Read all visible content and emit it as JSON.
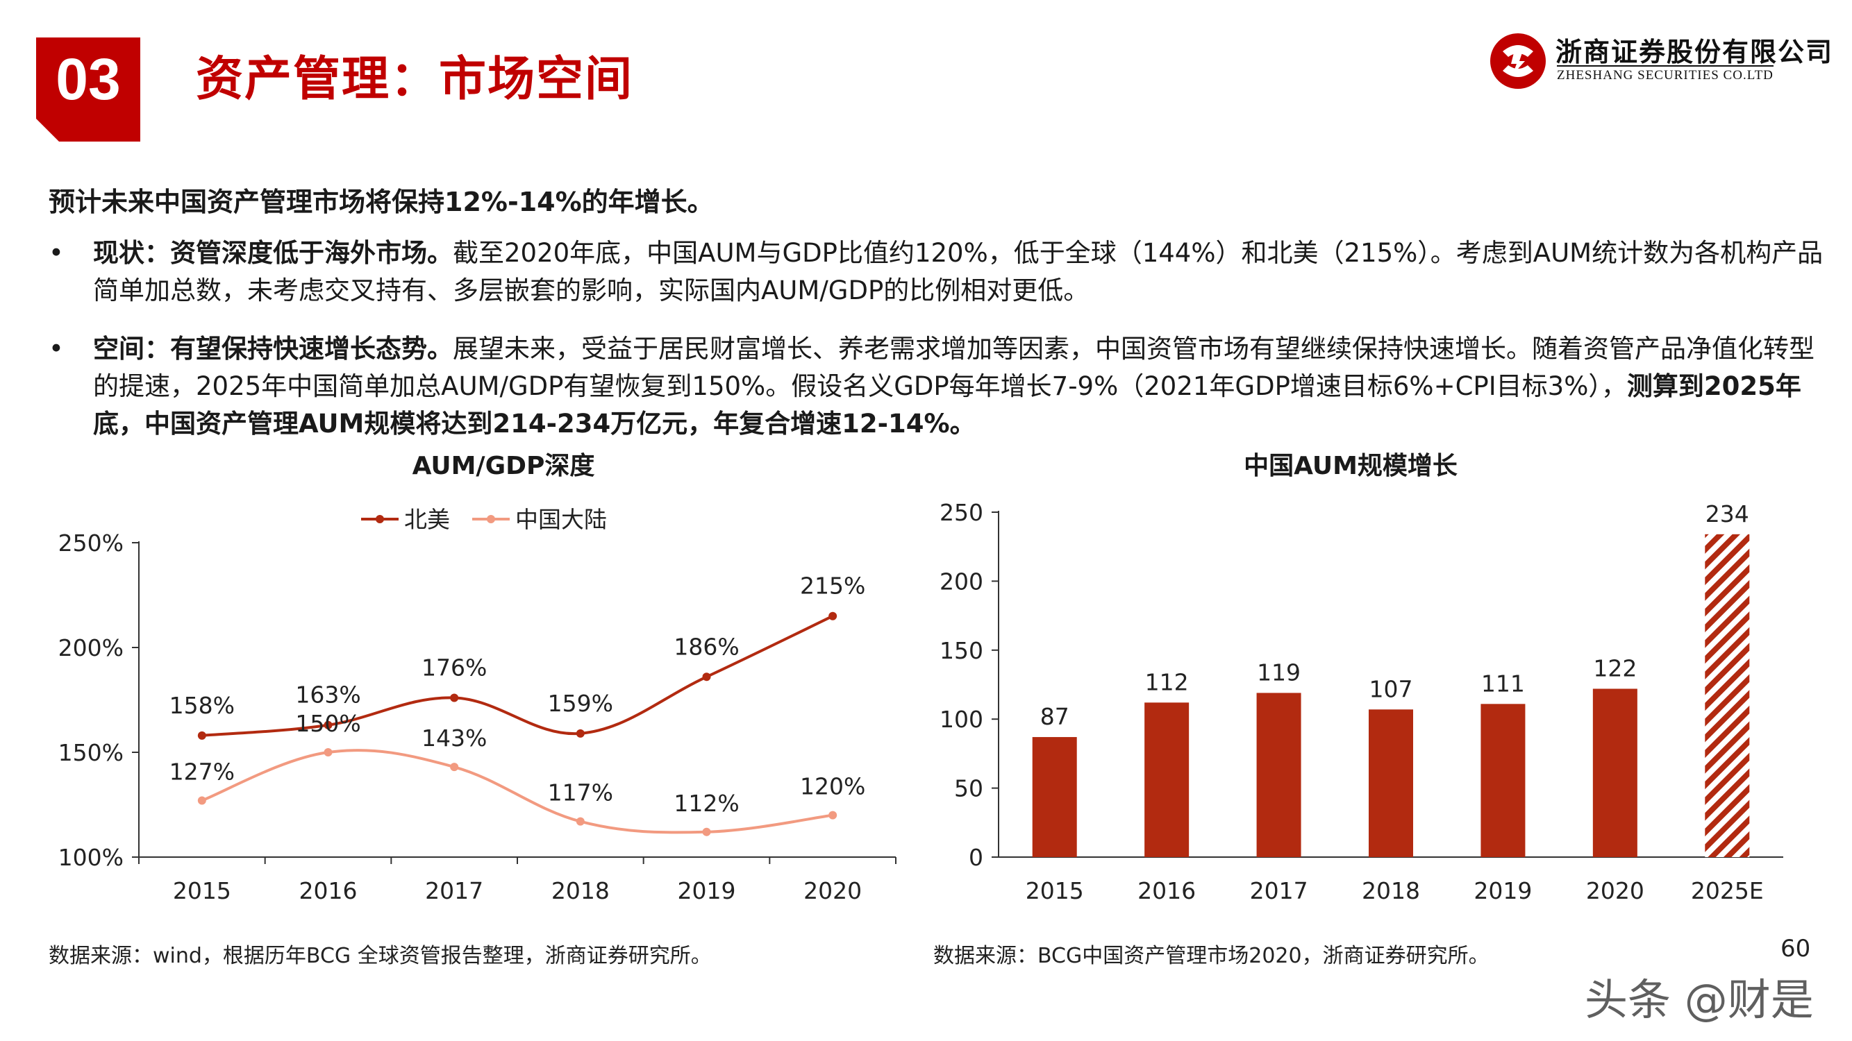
{
  "header": {
    "section_number": "03",
    "title": "资产管理：市场空间",
    "company_cn": "浙商证券股份有限公司",
    "company_en": "ZHESHANG SECURITIES CO.LTD",
    "brand_color": "#c00000"
  },
  "body": {
    "headline": "预计未来中国资产管理市场将保持12%-14%的年增长。",
    "bullets": [
      {
        "marker": "•",
        "bold_lead": "现状：资管深度低于海外市场。",
        "text": "截至2020年底，中国AUM与GDP比值约120%，低于全球（144%）和北美（215%）。考虑到AUM统计数为各机构产品简单加总数，未考虑交叉持有、多层嵌套的影响，实际国内AUM/GDP的比例相对更低。"
      },
      {
        "marker": "•",
        "bold_lead": "空间：有望保持快速增长态势。",
        "text": "展望未来，受益于居民财富增长、养老需求增加等因素，中国资管市场有望继续保持快速增长。随着资管产品净值化转型的提速，2025年中国简单加总AUM/GDP有望恢复到150%。假设名义GDP每年增长7-9%（2021年GDP增速目标6%+CPI目标3%），",
        "bold_tail": "测算到2025年底，中国资产管理AUM规模将达到214-234万亿元，年复合增速12-14%。"
      }
    ]
  },
  "chart_data": [
    {
      "type": "line",
      "title": "AUM/GDP深度",
      "categories": [
        "2015",
        "2016",
        "2017",
        "2018",
        "2019",
        "2020"
      ],
      "series": [
        {
          "name": "北美",
          "values": [
            158,
            163,
            176,
            159,
            186,
            215
          ],
          "labels": [
            "158%",
            "163%",
            "176%",
            "159%",
            "186%",
            "215%"
          ],
          "color": "#b22a10"
        },
        {
          "name": "中国大陆",
          "values": [
            127,
            150,
            143,
            117,
            112,
            120
          ],
          "labels": [
            "127%",
            "150%",
            "143%",
            "117%",
            "112%",
            "120%"
          ],
          "color": "#f29a80"
        }
      ],
      "ylim": [
        100,
        250
      ],
      "yticks": [
        100,
        150,
        200,
        250
      ],
      "ytick_labels": [
        "100%",
        "150%",
        "200%",
        "250%"
      ],
      "legend_position": "top",
      "grid": false,
      "smooth": true
    },
    {
      "type": "bar",
      "title": "中国AUM规模增长",
      "categories": [
        "2015",
        "2016",
        "2017",
        "2018",
        "2019",
        "2020",
        "2025E"
      ],
      "values": [
        87,
        112,
        119,
        107,
        111,
        122,
        234
      ],
      "estimated": [
        false,
        false,
        false,
        false,
        false,
        false,
        true
      ],
      "ylim": [
        0,
        250
      ],
      "yticks": [
        0,
        50,
        100,
        150,
        200,
        250
      ],
      "ytick_labels": [
        "0",
        "50",
        "100",
        "150",
        "200",
        "250"
      ],
      "bar_color": "#b22a10",
      "estimate_pattern": "diagonal-hatch",
      "grid": false
    }
  ],
  "footer": {
    "source_left": "数据来源：wind，根据历年BCG 全球资管报告整理，浙商证券研究所。",
    "source_right": "数据来源：BCG中国资产管理市场2020，浙商证券研究所。",
    "page_number": "60",
    "watermark": "头条 @财是"
  }
}
